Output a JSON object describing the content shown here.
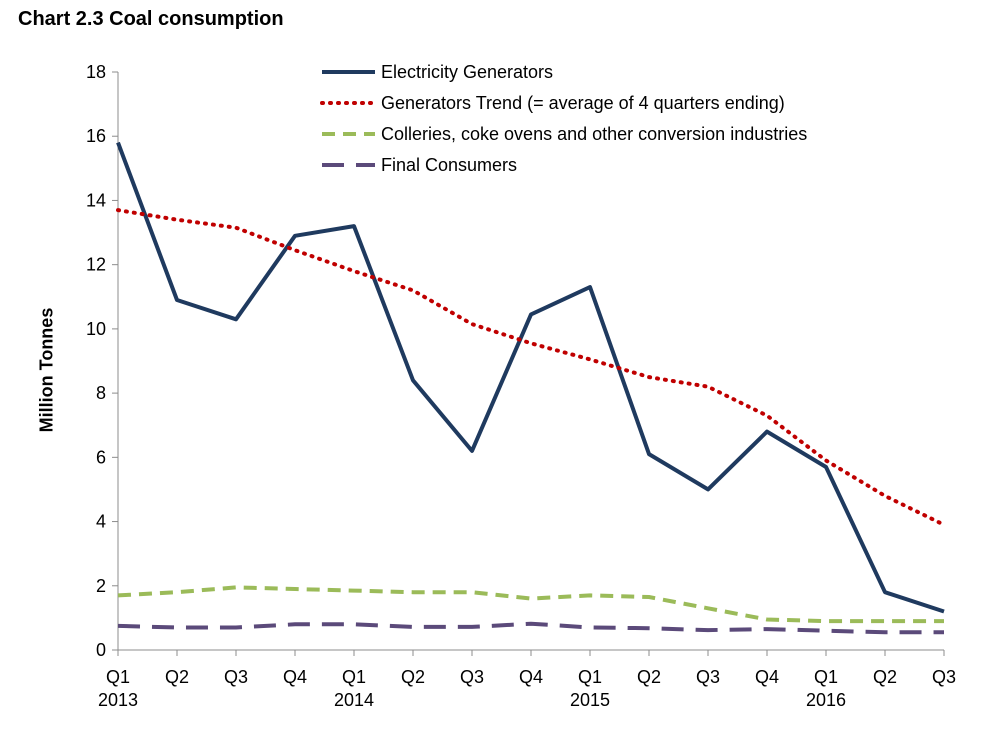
{
  "chart_data": {
    "type": "line",
    "title": "Chart 2.3 Coal consumption",
    "ylabel": "Million Tonnes",
    "ylim": [
      0,
      18
    ],
    "yticks": [
      0,
      2,
      4,
      6,
      8,
      10,
      12,
      14,
      16,
      18
    ],
    "categories": [
      "Q1",
      "Q2",
      "Q3",
      "Q4",
      "Q1",
      "Q2",
      "Q3",
      "Q4",
      "Q1",
      "Q2",
      "Q3",
      "Q4",
      "Q1",
      "Q2",
      "Q3"
    ],
    "year_labels": [
      {
        "index": 0,
        "label": "2013"
      },
      {
        "index": 4,
        "label": "2014"
      },
      {
        "index": 8,
        "label": "2015"
      },
      {
        "index": 12,
        "label": "2016"
      }
    ],
    "legend_position": "top-center",
    "series": [
      {
        "name": "Electricity Generators",
        "color": "#1f3a5f",
        "style": "solid",
        "values": [
          15.8,
          10.9,
          10.3,
          12.9,
          13.2,
          8.4,
          6.2,
          10.45,
          11.3,
          6.1,
          5.0,
          6.8,
          5.7,
          1.8,
          1.2
        ]
      },
      {
        "name": "Generators Trend (= average of 4 quarters ending)",
        "color": "#c00000",
        "style": "dotted",
        "values": [
          13.7,
          13.4,
          13.15,
          12.45,
          11.8,
          11.2,
          10.15,
          9.55,
          9.05,
          8.5,
          8.2,
          7.3,
          5.9,
          4.8,
          3.9
        ]
      },
      {
        "name": "Colleries, coke ovens and other conversion industries",
        "color": "#9bbb59",
        "style": "dash",
        "values": [
          1.7,
          1.8,
          1.95,
          1.9,
          1.85,
          1.8,
          1.8,
          1.6,
          1.7,
          1.65,
          1.3,
          0.95,
          0.9,
          0.9,
          0.9
        ]
      },
      {
        "name": "Final Consumers",
        "color": "#5b4a7a",
        "style": "longdash",
        "values": [
          0.75,
          0.7,
          0.7,
          0.8,
          0.8,
          0.72,
          0.72,
          0.82,
          0.7,
          0.68,
          0.62,
          0.65,
          0.6,
          0.55,
          0.55
        ]
      }
    ]
  }
}
